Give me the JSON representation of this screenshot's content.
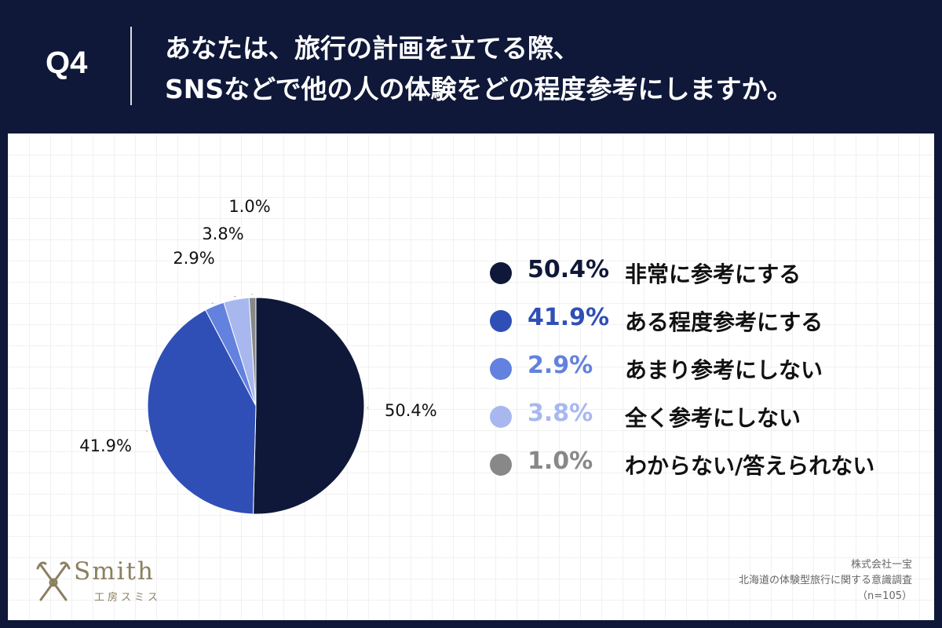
{
  "header": {
    "question_number": "Q4",
    "question_line1": "あなたは、旅行の計画を立てる際、",
    "question_line2": "SNSなどで他の人の体験をどの程度参考にしますか。"
  },
  "chart_data": {
    "type": "pie",
    "title": "あなたは、旅行の計画を立てる際、SNSなどで他の人の体験をどの程度参考にしますか。",
    "start": "12 o'clock, clockwise",
    "slices": [
      {
        "label": "非常に参考にする",
        "value": 50.4,
        "display": "50.4%",
        "color": "#0f1838"
      },
      {
        "label": "ある程度参考にする",
        "value": 41.9,
        "display": "41.9%",
        "color": "#2f4fb6"
      },
      {
        "label": "あまり参考にしない",
        "value": 2.9,
        "display": "2.9%",
        "color": "#6381de"
      },
      {
        "label": "全く参考にしない",
        "value": 3.8,
        "display": "3.8%",
        "color": "#a8b8ef"
      },
      {
        "label": "わからない/答えられない",
        "value": 1.0,
        "display": "1.0%",
        "color": "#888888"
      }
    ]
  },
  "legend": [
    {
      "value": "50.4%",
      "label": "非常に参考にする",
      "color": "#0f1838"
    },
    {
      "value": "41.9%",
      "label": "ある程度参考にする",
      "color": "#2f4fb6"
    },
    {
      "value": "2.9%",
      "label": "あまり参考にしない",
      "color": "#6381de"
    },
    {
      "value": "3.8%",
      "label": "全く参考にしない",
      "color": "#a8b8ef"
    },
    {
      "value": "1.0%",
      "label": "わからない/答えられない",
      "color": "#888888"
    }
  ],
  "footer": {
    "logo_word": "Smith",
    "logo_sub": "工房スミス",
    "company": "株式会社一宝",
    "survey": "北海道の体験型旅行に関する意識調査",
    "sample": "（n=105）"
  }
}
